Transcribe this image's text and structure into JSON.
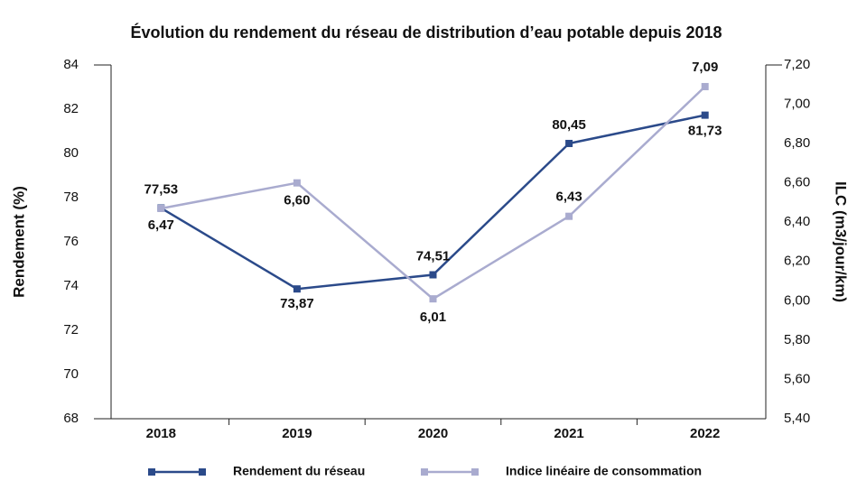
{
  "chart_data": {
    "type": "line",
    "title": "Évolution du rendement du réseau de distribution d’eau potable depuis 2018",
    "categories": [
      "2018",
      "2019",
      "2020",
      "2021",
      "2022"
    ],
    "ylabel": "Rendement (%)",
    "y2label": "ILC (m3/jour/km)",
    "ylim": [
      68,
      84
    ],
    "yticks": [
      68,
      70,
      72,
      74,
      76,
      78,
      80,
      82,
      84
    ],
    "y2lim": [
      5.4,
      7.2
    ],
    "y2ticks": [
      {
        "value": 5.4,
        "label": "5,40"
      },
      {
        "value": 5.6,
        "label": "5,60"
      },
      {
        "value": 5.8,
        "label": "5,80"
      },
      {
        "value": 6.0,
        "label": "6,00"
      },
      {
        "value": 6.2,
        "label": "6,20"
      },
      {
        "value": 6.4,
        "label": "6,40"
      },
      {
        "value": 6.6,
        "label": "6,60"
      },
      {
        "value": 6.8,
        "label": "6,80"
      },
      {
        "value": 7.0,
        "label": "7,00"
      },
      {
        "value": 7.2,
        "label": "7,20"
      }
    ],
    "legend": "bottom",
    "series": [
      {
        "name": "Rendement du réseau",
        "color": "#2b4a8a",
        "values": [
          77.53,
          73.87,
          74.51,
          80.45,
          81.73
        ],
        "value_labels": [
          "77,53",
          "73,87",
          "74,51",
          "80,45",
          "81,73"
        ]
      },
      {
        "name": "Indice linéaire de consommation",
        "color": "#a9abcf",
        "axis": "y2",
        "values": [
          6.47,
          6.6,
          6.01,
          6.43,
          7.09
        ],
        "value_labels": [
          "6,47",
          "6,60",
          "6,01",
          "6,43",
          "7,09"
        ]
      }
    ]
  }
}
